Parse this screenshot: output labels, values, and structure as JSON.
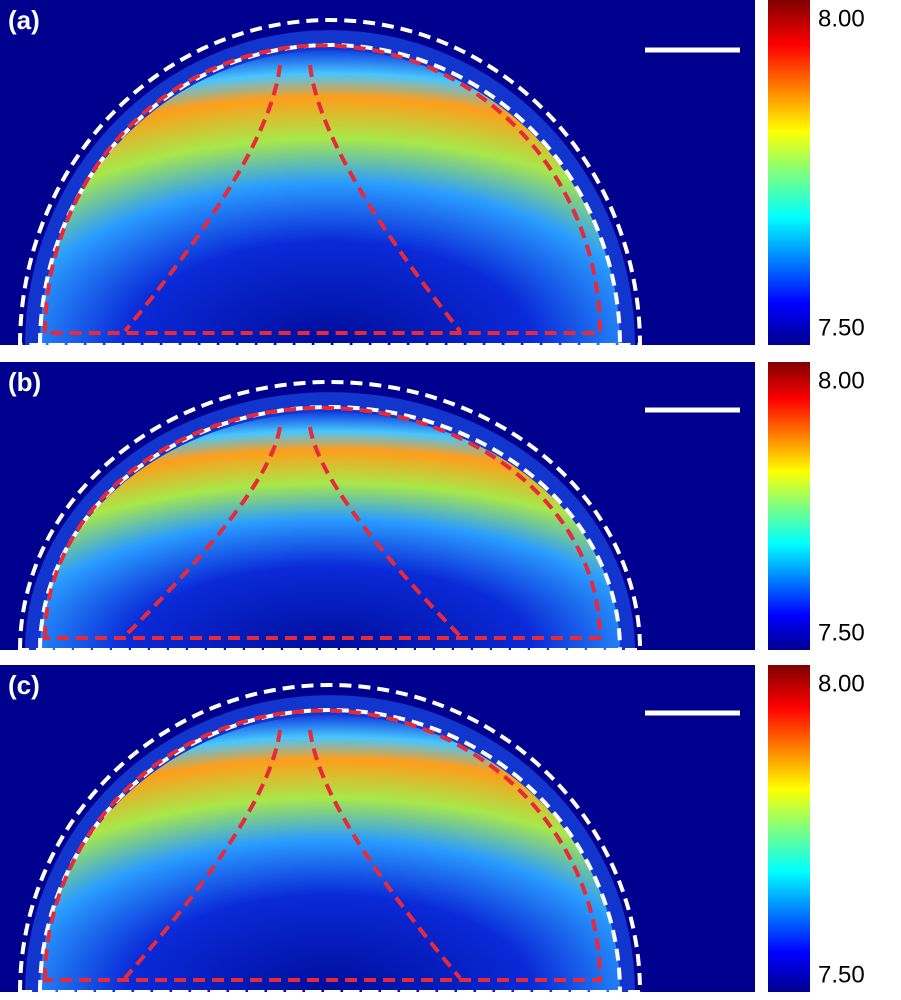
{
  "panels": [
    {
      "label": "(a)",
      "colorbar": {
        "max": "8.00",
        "min": "7.50"
      }
    },
    {
      "label": "(b)",
      "colorbar": {
        "max": "8.00",
        "min": "7.50"
      }
    },
    {
      "label": "(c)",
      "colorbar": {
        "max": "8.00",
        "min": "7.50"
      }
    }
  ]
}
